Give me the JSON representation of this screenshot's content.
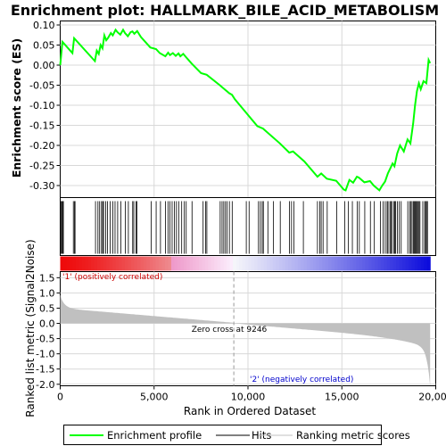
{
  "chart_data": {
    "type": "line",
    "title": "Enrichment plot: HALLMARK_BILE_ACID_METABOLISM",
    "ylabel": "Enrichment score (ES)",
    "xlabel": "Rank in Ordered Dataset",
    "ylabel_bottom": "Ranked list metric (Signal2Noise)",
    "es_ylim": [
      -0.33,
      0.11
    ],
    "es_yticks": [
      0.1,
      0.05,
      0.0,
      -0.05,
      -0.1,
      -0.15,
      -0.2,
      -0.25,
      -0.3
    ],
    "es_ytick_labels": [
      "0.10",
      "0.05",
      "0.00",
      "-0.05",
      "-0.10",
      "-0.15",
      "-0.20",
      "-0.25",
      "-0.30"
    ],
    "xlim": [
      0,
      20000
    ],
    "xticks": [
      0,
      5000,
      10000,
      15000,
      20000
    ],
    "xtick_labels": [
      "0",
      "5,000",
      "10,000",
      "15,000",
      "20,000"
    ],
    "metric_ylim": [
      -2.05,
      1.7
    ],
    "metric_yticks": [
      1.5,
      1.0,
      0.5,
      0.0,
      -0.5,
      -1.0,
      -1.5,
      -2.0
    ],
    "metric_ytick_labels": [
      "1.5",
      "1.0",
      "0.5",
      "0.0",
      "-0.5",
      "-1.0",
      "-1.5",
      "-2.0"
    ],
    "n_genes": 19700,
    "zero_cross": 9246,
    "zero_cross_label": "Zero cross at 9246",
    "positive_label": "'1' (positively correlated)",
    "negative_label": "'2' (negatively correlated)",
    "series": [
      {
        "name": "Enrichment profile",
        "color": "#00ff00",
        "x": [
          0,
          120,
          650,
          740,
          1850,
          1950,
          2050,
          2150,
          2250,
          2350,
          2450,
          2550,
          2700,
          2800,
          2950,
          3050,
          3200,
          3350,
          3450,
          3600,
          3750,
          3850,
          3950,
          4100,
          4300,
          4800,
          5100,
          5300,
          5600,
          5750,
          5850,
          6000,
          6150,
          6300,
          6400,
          6550,
          6700,
          7000,
          7500,
          7800,
          8500,
          8700,
          9000,
          9150,
          9300,
          10500,
          10800,
          11700,
          12200,
          12400,
          13000,
          13700,
          13900,
          14200,
          14700,
          15100,
          15200,
          15400,
          15600,
          15800,
          15900,
          16200,
          16500,
          16700,
          17000,
          17150,
          17300,
          17450,
          17600,
          17700,
          17800,
          17950,
          18100,
          18300,
          18500,
          18650,
          18800,
          18900,
          19000,
          19100,
          19200,
          19350,
          19500,
          19620,
          19700
        ],
        "y": [
          0.0,
          0.058,
          0.03,
          0.067,
          0.01,
          0.036,
          0.028,
          0.05,
          0.042,
          0.074,
          0.062,
          0.068,
          0.08,
          0.074,
          0.088,
          0.082,
          0.076,
          0.088,
          0.08,
          0.072,
          0.082,
          0.084,
          0.078,
          0.085,
          0.07,
          0.044,
          0.04,
          0.03,
          0.022,
          0.031,
          0.025,
          0.03,
          0.023,
          0.029,
          0.022,
          0.028,
          0.02,
          0.004,
          -0.02,
          -0.024,
          -0.05,
          -0.058,
          -0.07,
          -0.074,
          -0.085,
          -0.152,
          -0.158,
          -0.195,
          -0.218,
          -0.215,
          -0.24,
          -0.278,
          -0.27,
          -0.283,
          -0.288,
          -0.31,
          -0.312,
          -0.286,
          -0.293,
          -0.278,
          -0.28,
          -0.292,
          -0.289,
          -0.3,
          -0.312,
          -0.3,
          -0.29,
          -0.27,
          -0.255,
          -0.245,
          -0.252,
          -0.22,
          -0.2,
          -0.215,
          -0.185,
          -0.195,
          -0.145,
          -0.1,
          -0.065,
          -0.045,
          -0.06,
          -0.04,
          -0.045,
          0.013,
          0.005
        ]
      }
    ],
    "hits": [
      40,
      90,
      130,
      170,
      700,
      760,
      790,
      1880,
      2010,
      2100,
      2200,
      2260,
      2310,
      2420,
      2520,
      2660,
      2800,
      2920,
      3060,
      3230,
      3470,
      3630,
      3860,
      3920,
      4040,
      4090,
      4850,
      5110,
      5340,
      5610,
      5740,
      5840,
      5960,
      6080,
      6190,
      6310,
      6470,
      6610,
      6710,
      7020,
      7610,
      7740,
      7810,
      8520,
      8620,
      8710,
      8800,
      8890,
      9010,
      9160,
      9910,
      10060,
      10560,
      10660,
      10760,
      10820,
      11060,
      11360,
      11720,
      12210,
      12320,
      12450,
      12950,
      13700,
      13830,
      13900,
      14000,
      14220,
      14730,
      15150,
      15350,
      15560,
      15820,
      15930,
      16220,
      16520,
      16730,
      17050,
      17200,
      17310,
      17410,
      17460,
      17560,
      17610,
      17660,
      17760,
      17810,
      17860,
      17960,
      18060,
      18160,
      18510,
      18610,
      18680,
      18740,
      18810,
      18860,
      18910,
      18960,
      19010,
      19060,
      19110,
      19160,
      19310,
      19410,
      19460,
      19510,
      19560
    ]
  },
  "legend": {
    "items": [
      {
        "label": "Enrichment profile",
        "color": "#00ff00"
      },
      {
        "label": "Hits",
        "color": "#000000"
      },
      {
        "label": "Ranking metric scores",
        "color": "#c0c0c0"
      }
    ]
  }
}
